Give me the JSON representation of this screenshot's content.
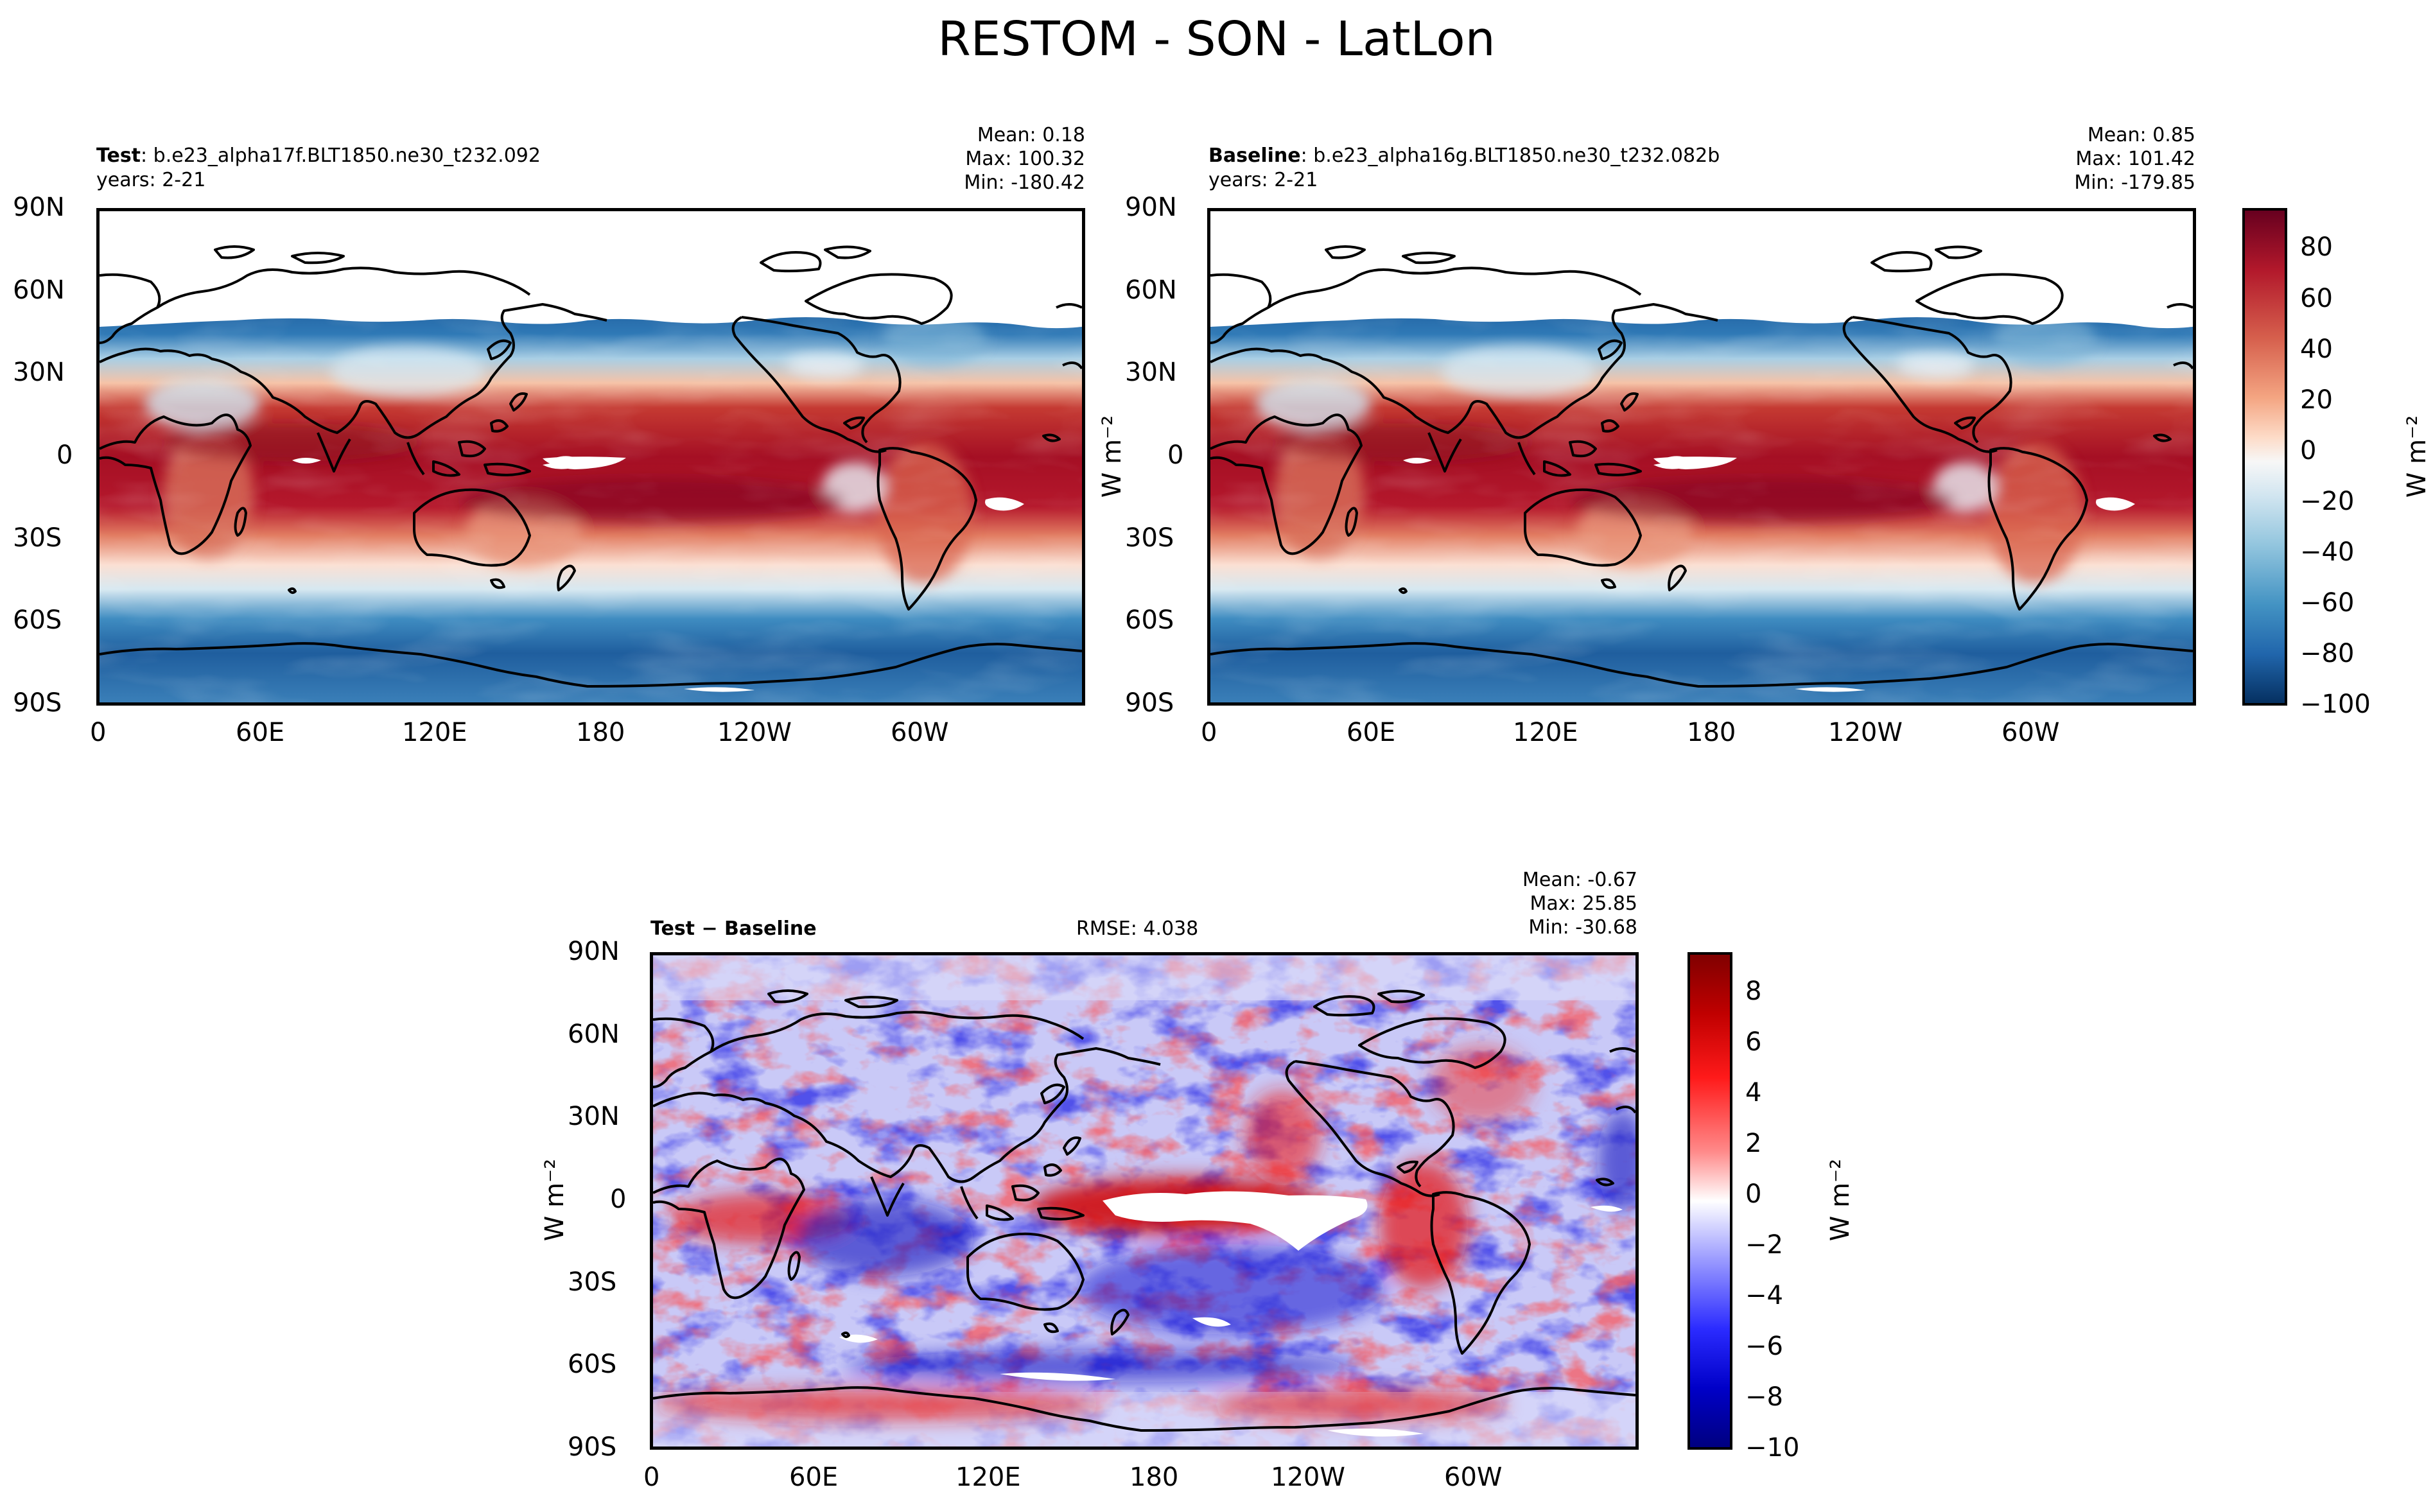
{
  "title": "RESTOM - SON - LatLon",
  "chart_data": [
    {
      "type": "heatmap",
      "panel": "test",
      "label_bold": "Test",
      "label_rest": ": b.e23_alpha17f.BLT1850.ne30_t232.092",
      "years": "years: 2-21",
      "stats": [
        "Mean:  0.18",
        "Max: 100.32",
        "Min: -180.42"
      ],
      "xticks": [
        "0",
        "60E",
        "120E",
        "180",
        "120W",
        "60W"
      ],
      "yticks": [
        "90N",
        "60N",
        "30N",
        "0",
        "30S",
        "60S",
        "90S"
      ],
      "xlim": [
        0,
        360
      ],
      "ylim": [
        -90,
        90
      ],
      "value_range": [
        -100,
        95
      ]
    },
    {
      "type": "heatmap",
      "panel": "baseline",
      "label_bold": "Baseline",
      "label_rest": ": b.e23_alpha16g.BLT1850.ne30_t232.082b",
      "years": "years: 2-21",
      "stats": [
        "Mean:  0.85",
        "Max: 101.42",
        "Min: -179.85"
      ],
      "xticks": [
        "0",
        "60E",
        "120E",
        "180",
        "120W",
        "60W"
      ],
      "yticks": [
        "90N",
        "60N",
        "30N",
        "0",
        "30S",
        "60S",
        "90S"
      ],
      "xlim": [
        0,
        360
      ],
      "ylim": [
        -90,
        90
      ],
      "value_range": [
        -100,
        95
      ],
      "colorbar_ticks": [
        "80",
        "60",
        "40",
        "20",
        "0",
        "−20",
        "−40",
        "−60",
        "−80",
        "−100"
      ],
      "colorbar_label": "W m⁻²"
    },
    {
      "type": "heatmap",
      "panel": "difference",
      "label_bold": "Test − Baseline",
      "rmse": "RMSE: 4.038",
      "stats": [
        "Mean: -0.67",
        "Max: 25.85",
        "Min: -30.68"
      ],
      "xticks": [
        "0",
        "60E",
        "120E",
        "180",
        "120W",
        "60W"
      ],
      "yticks": [
        "90N",
        "60N",
        "30N",
        "0",
        "30S",
        "60S",
        "90S"
      ],
      "xlim": [
        0,
        360
      ],
      "ylim": [
        -90,
        90
      ],
      "value_range": [
        -10,
        9.5
      ],
      "colorbar_ticks": [
        "8",
        "6",
        "4",
        "2",
        "0",
        "−2",
        "−4",
        "−6",
        "−8",
        "−10"
      ],
      "colorbar_label": "W m⁻²",
      "ylabel": "W m⁻²"
    }
  ],
  "ylabel_between": "W m⁻²"
}
